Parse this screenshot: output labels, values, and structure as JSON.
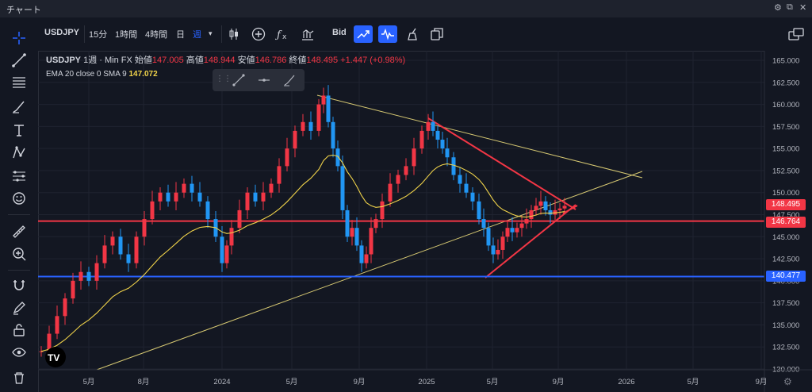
{
  "window": {
    "title": "チャート"
  },
  "toolbar": {
    "symbol": "USDJPY",
    "intervals": [
      "15分",
      "1時間",
      "4時間",
      "日",
      "週"
    ],
    "active_interval": "週",
    "bid_label": "Bid"
  },
  "legend": {
    "symbol": "USDJPY",
    "interval": "1週",
    "source": "Min FX",
    "open_label": "始値",
    "open": "147.005",
    "high_label": "高値",
    "high": "148.944",
    "low_label": "安値",
    "low": "146.786",
    "close_label": "終値",
    "close": "148.495",
    "change": "+1.447 (+0.98%)"
  },
  "indicator": {
    "label": "EMA 20 close 0 SMA 9",
    "value": "147.072"
  },
  "chart_data": {
    "type": "candlestick",
    "y_ticks": [
      "165.000",
      "162.500",
      "160.000",
      "157.500",
      "155.000",
      "152.500",
      "150.000",
      "147.500",
      "145.000",
      "142.500",
      "140.000",
      "137.500",
      "135.000",
      "132.500",
      "130.000"
    ],
    "ylim": [
      130,
      165
    ],
    "x_ticks": [
      "5月",
      "8月",
      "2024",
      "5月",
      "9月",
      "2025",
      "5月",
      "9月",
      "2026",
      "5月",
      "9月"
    ],
    "price_labels": [
      {
        "value": "148.495",
        "color": "#f23645"
      },
      {
        "value": "146.764",
        "color": "#f23645"
      },
      {
        "value": "140.477",
        "color": "#2962ff"
      }
    ],
    "horizontal_lines": [
      {
        "y": 146.764,
        "color": "#f23645"
      },
      {
        "y": 140.477,
        "color": "#2962ff"
      }
    ]
  },
  "colors": {
    "up": "#f23645",
    "down": "#2196f3",
    "ema": "#f0d34a",
    "bg": "#131722"
  }
}
